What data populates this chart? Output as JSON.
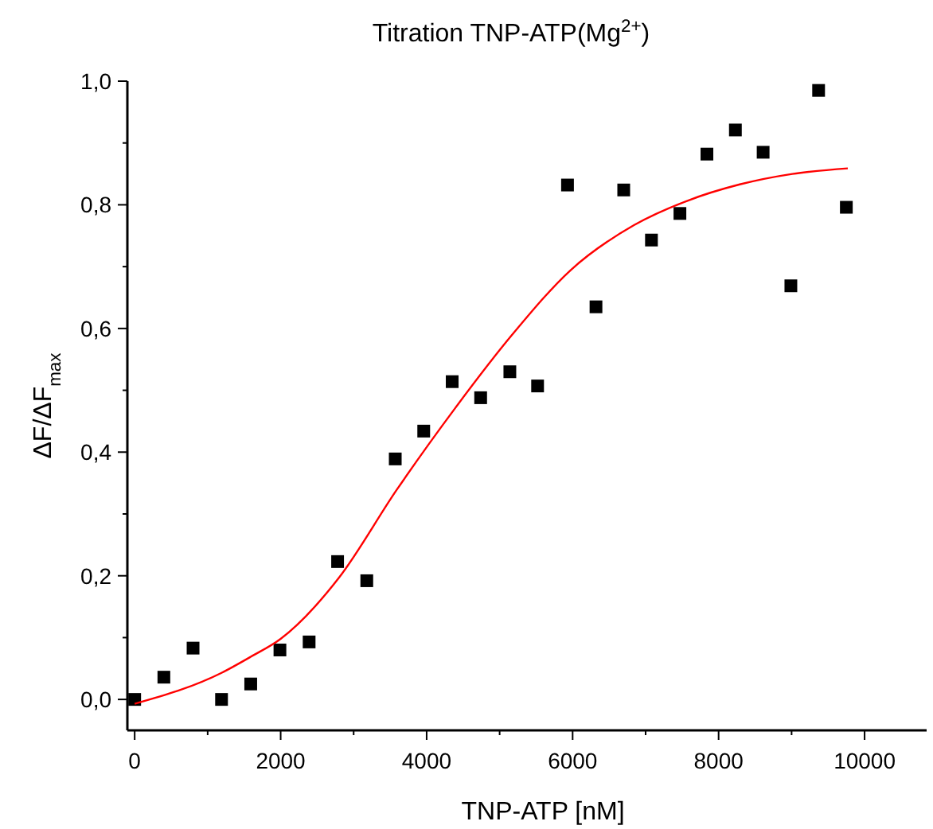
{
  "chart_data": {
    "type": "scatter",
    "title": "Titration TNP-ATP(Mg$^{2+}$)",
    "xlabel": "TNP-ATP [nM]",
    "ylabel": "ΔF/ΔF$_{max}$",
    "xlim": [
      -100,
      10850
    ],
    "ylim": [
      -0.05,
      1.0
    ],
    "xticks": [
      0,
      {
        "value": 1000,
        "label": null
      },
      2000,
      {
        "value": 3000,
        "label": null
      },
      4000,
      {
        "value": 5000,
        "label": null
      },
      6000,
      {
        "value": 7000,
        "label": null
      },
      8000,
      {
        "value": 9000,
        "label": null
      },
      10000
    ],
    "yticks": [
      {
        "value": 0,
        "label": "0,0"
      },
      {
        "value": 0.1,
        "label": null
      },
      {
        "value": 0.2,
        "label": "0,2"
      },
      {
        "value": 0.3,
        "label": null
      },
      {
        "value": 0.4,
        "label": "0,4"
      },
      {
        "value": 0.5,
        "label": null
      },
      {
        "value": 0.6,
        "label": "0,6"
      },
      {
        "value": 0.7,
        "label": null
      },
      {
        "value": 0.8,
        "label": "0,8"
      },
      {
        "value": 0.9,
        "label": null
      },
      {
        "value": 1.0,
        "label": "1,0"
      }
    ],
    "grid": false,
    "series": [
      {
        "color": "#000000",
        "marker": "square",
        "x": [
          0,
          400,
          800,
          1190,
          1590,
          1990,
          2390,
          2780,
          3180,
          3570,
          3960,
          4350,
          4740,
          5140,
          5520,
          5930,
          6320,
          6700,
          7080,
          7470,
          7840,
          8230,
          8610,
          8990,
          9370,
          9750
        ],
        "values": [
          0.0,
          0.036,
          0.083,
          0.0,
          0.025,
          0.08,
          0.093,
          0.223,
          0.192,
          0.389,
          0.434,
          0.514,
          0.488,
          0.53,
          0.507,
          0.832,
          0.635,
          0.824,
          0.743,
          0.786,
          0.882,
          0.921,
          0.885,
          0.669,
          0.985,
          0.796
        ]
      },
      {
        "type": "line",
        "color": "#ff0000",
        "marker": "none",
        "line_style": "solid",
        "x": [
          0,
          1190,
          1590,
          2000,
          2800,
          3590,
          4390,
          5180,
          5970,
          6840,
          7560,
          8290,
          9010,
          9770
        ],
        "values": [
          -0.007,
          0.043,
          0.069,
          0.098,
          0.197,
          0.339,
          0.471,
          0.591,
          0.694,
          0.767,
          0.806,
          0.833,
          0.85,
          0.859
        ]
      }
    ]
  }
}
